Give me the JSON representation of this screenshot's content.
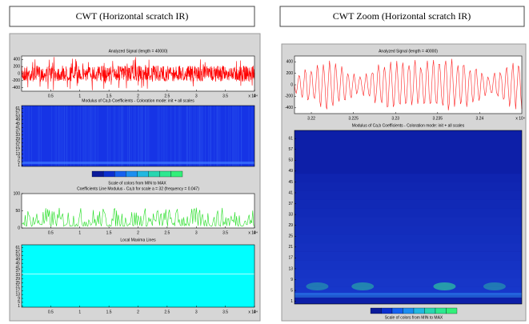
{
  "left": {
    "caption": "CWT (Horizontal scratch IR)",
    "panels": [
      {
        "title": "Analyzed Signal (length = 40000)",
        "ylim": [
          -500,
          500
        ],
        "yticks": [
          -400,
          -200,
          0,
          200,
          400
        ],
        "xlim": [
          0,
          4
        ],
        "xticks": [
          0.5,
          1,
          1.5,
          2,
          2.5,
          3,
          3.5,
          4
        ],
        "x_exponent": "x 10⁴"
      },
      {
        "title": "Modulus of Ca,b Coefficients - Coloration mode: init + all scales",
        "ylim": [
          0,
          64
        ],
        "yticks": [
          1,
          5,
          9,
          13,
          17,
          21,
          25,
          29,
          33,
          37,
          41,
          45,
          49,
          53,
          57,
          61
        ]
      },
      {
        "title": "Coefficients Line Modulus - Ca,b for scale a = 32 (frequency = 0.047)",
        "ylim": [
          0,
          100
        ],
        "yticks": [
          0,
          50,
          100
        ],
        "xlim": [
          0,
          4
        ],
        "xticks": [
          0.5,
          1,
          1.5,
          2,
          2.5,
          3,
          3.5,
          4
        ],
        "x_exponent": "x 10⁴"
      },
      {
        "title": "Local Maxima Lines",
        "ylim": [
          0,
          64
        ],
        "yticks": [
          1,
          5,
          9,
          13,
          17,
          21,
          25,
          29,
          33,
          37,
          41,
          45,
          49,
          53,
          57,
          61
        ],
        "xlim": [
          0,
          4
        ],
        "xticks": [
          0.5,
          1,
          1.5,
          2,
          2.5,
          3,
          3.5,
          4
        ],
        "x_exponent": "x 10⁴"
      }
    ],
    "colorbar_label": "Scale of colors from MIN to MAX"
  },
  "right": {
    "caption": "CWT Zoom (Horizontal scratch IR)",
    "panels": [
      {
        "title": "Analyzed Signal (length = 40000)",
        "ylim": [
          -500,
          500
        ],
        "yticks": [
          -400,
          -200,
          0,
          200,
          400
        ],
        "xlim": [
          3.218,
          3.245
        ],
        "xticks": [
          3.22,
          3.225,
          3.23,
          3.235,
          3.24
        ],
        "x_exponent": "x 10⁴"
      },
      {
        "title": "Modulus of Ca,b Coefficients - Coloration mode: init + all scales",
        "ylim": [
          0,
          64
        ],
        "yticks": [
          1,
          5,
          9,
          13,
          17,
          21,
          25,
          29,
          33,
          37,
          41,
          45,
          49,
          53,
          57,
          61
        ]
      }
    ],
    "colorbar_label": "Scale of colors from MIN to MAX"
  }
}
